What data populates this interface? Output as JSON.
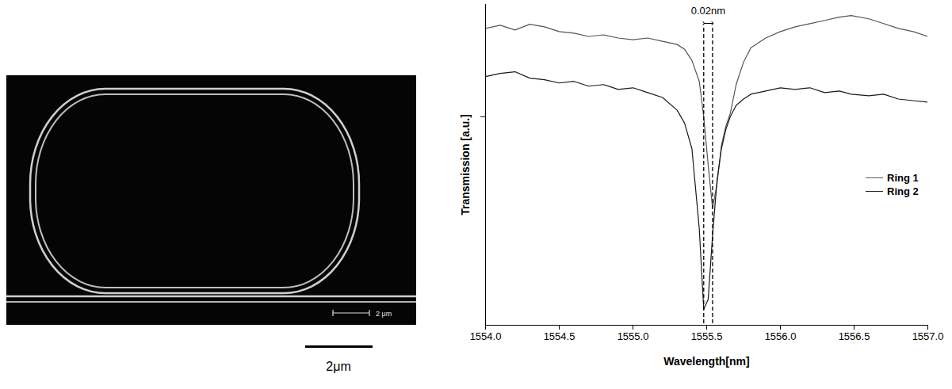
{
  "image": {
    "inner_scale_label": "2 μm",
    "scale_label": "2μm"
  },
  "chart_data": {
    "type": "line",
    "xlabel": "Wavelength[nm]",
    "ylabel": "Transmission [a.u.]",
    "x": [
      1554.0,
      1554.1,
      1554.2,
      1554.3,
      1554.4,
      1554.5,
      1554.6,
      1554.7,
      1554.8,
      1554.9,
      1555.0,
      1555.1,
      1555.2,
      1555.3,
      1555.35,
      1555.4,
      1555.45,
      1555.48,
      1555.51,
      1555.54,
      1555.57,
      1555.6,
      1555.63,
      1555.66,
      1555.7,
      1555.75,
      1555.8,
      1555.9,
      1556.0,
      1556.1,
      1556.2,
      1556.3,
      1556.4,
      1556.48,
      1556.6,
      1556.7,
      1556.8,
      1556.9,
      1557.0
    ],
    "series": [
      {
        "name": "Ring 1",
        "color": "#555555",
        "values": [
          92.5,
          93.5,
          92.0,
          93.8,
          93.0,
          91.5,
          91.0,
          90.0,
          90.5,
          89.5,
          89.0,
          89.5,
          88.5,
          87.5,
          86.0,
          82.5,
          76.0,
          65.0,
          50.0,
          36.5,
          44.0,
          56.0,
          62.0,
          66.0,
          75.0,
          82.0,
          86.5,
          89.5,
          91.5,
          93.0,
          94.0,
          95.0,
          96.0,
          96.5,
          95.5,
          94.0,
          92.5,
          91.5,
          90.0
        ]
      },
      {
        "name": "Ring 2",
        "color": "#1a1a1a",
        "values": [
          77.5,
          78.5,
          79.0,
          77.0,
          76.5,
          75.5,
          76.0,
          74.5,
          75.0,
          73.5,
          74.0,
          72.5,
          71.0,
          67.0,
          63.0,
          55.0,
          30.0,
          5.0,
          8.0,
          28.0,
          45.0,
          55.0,
          61.0,
          65.0,
          68.5,
          70.5,
          72.0,
          73.0,
          74.0,
          73.5,
          74.0,
          72.5,
          73.0,
          72.0,
          71.5,
          72.0,
          70.5,
          70.0,
          69.5
        ]
      }
    ],
    "xlim": [
      1554.0,
      1557.0
    ],
    "xticks": [
      {
        "value": 1554,
        "label": "1554.0"
      },
      1554.5,
      {
        "value": 1555,
        "label": "1555.0"
      },
      1555.5,
      {
        "value": 1556,
        "label": "1556.0"
      },
      1556.5,
      {
        "value": 1557,
        "label": "1557.0"
      }
    ],
    "ylim": [
      0,
      100
    ],
    "yticks": [
      65
    ],
    "tick_labels": "x",
    "grid": false,
    "legend": "right",
    "annotation": {
      "text": "0.02nm",
      "x": [
        1555.48,
        1555.54
      ]
    }
  }
}
